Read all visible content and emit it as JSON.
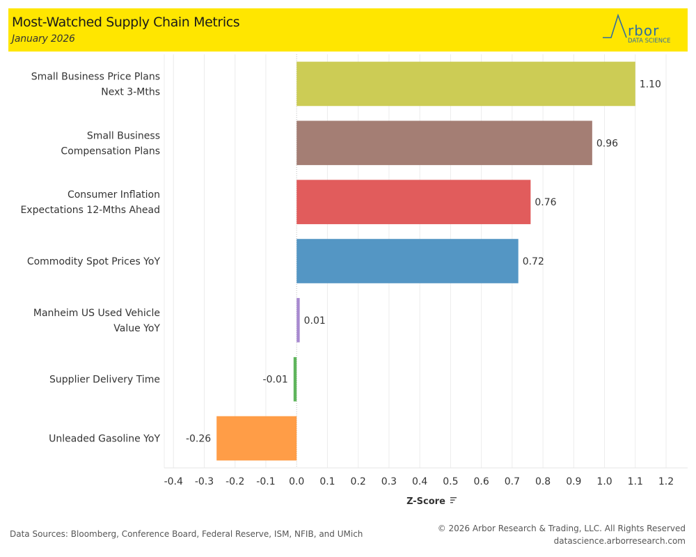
{
  "header": {
    "title": "Most-Watched Supply Chain Metrics",
    "subtitle": "January 2026",
    "background_color": "#ffe600"
  },
  "logo": {
    "word": "rbor",
    "initial_icon": "arbor-a-peak-icon",
    "tagline": "DATA SCIENCE",
    "color": "#2f6da0"
  },
  "chart_data": {
    "type": "bar",
    "orientation": "horizontal",
    "title": "Most-Watched Supply Chain Metrics",
    "subtitle": "January 2026",
    "categories": [
      [
        "Small Business Price Plans",
        "Next 3-Mths"
      ],
      [
        "Small Business",
        "Compensation Plans"
      ],
      [
        "Consumer Inflation",
        "Expectations 12-Mths Ahead"
      ],
      [
        "Commodity Spot Prices YoY"
      ],
      [
        "Manheim US Used Vehicle",
        "Value YoY"
      ],
      [
        "Supplier Delivery Time"
      ],
      [
        "Unleaded Gasoline YoY"
      ]
    ],
    "values": [
      1.1,
      0.96,
      0.76,
      0.72,
      0.01,
      -0.01,
      -0.26
    ],
    "value_labels": [
      "1.10",
      "0.96",
      "0.76",
      "0.72",
      "0.01",
      "-0.01",
      "-0.26"
    ],
    "colors": [
      "#cccc55",
      "#a47e74",
      "#e15c5c",
      "#5496c4",
      "#a88ad0",
      "#5fb55c",
      "#ff9d47"
    ],
    "xlabel": "Z-Score",
    "xlabel_icon": "sort-descending-icon",
    "ylabel": "",
    "xlim": [
      -0.43,
      1.27
    ],
    "x_ticks": [
      -0.4,
      -0.3,
      -0.2,
      -0.1,
      0.0,
      0.1,
      0.2,
      0.3,
      0.4,
      0.5,
      0.6,
      0.7,
      0.8,
      0.9,
      1.0,
      1.1,
      1.2
    ],
    "x_tick_labels": [
      "-0.4",
      "-0.3",
      "-0.2",
      "-0.1",
      "0.0",
      "0.1",
      "0.2",
      "0.3",
      "0.4",
      "0.5",
      "0.6",
      "0.7",
      "0.8",
      "0.9",
      "1.0",
      "1.1",
      "1.2"
    ],
    "grid": "vertical",
    "zero_line": "dotted",
    "legend": "none"
  },
  "footer": {
    "sources": "Data Sources: Bloomberg, Conference Board, Federal Reserve, ISM, NFIB, and UMich",
    "copyright": "© 2026 Arbor Research & Trading, LLC. All Rights Reserved",
    "website": "datascience.arborresearch.com"
  }
}
